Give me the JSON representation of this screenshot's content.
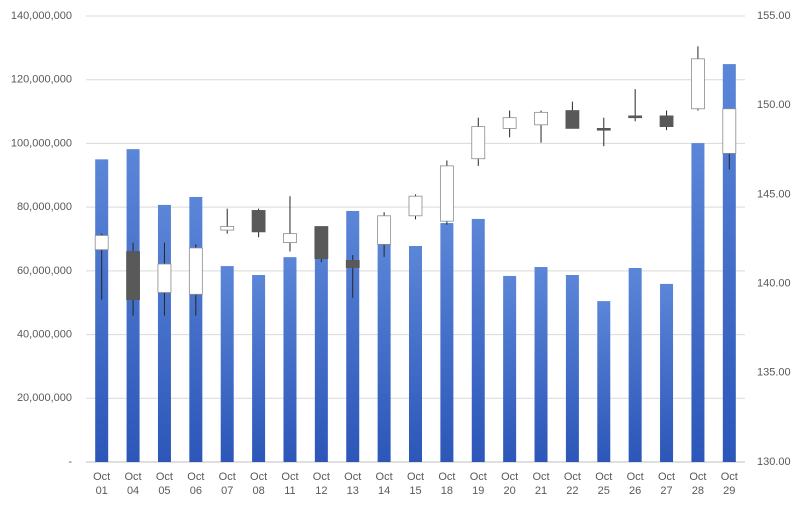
{
  "chart_data": {
    "type": "candlestick",
    "categories": [
      "Oct 01",
      "Oct 04",
      "Oct 05",
      "Oct 06",
      "Oct 07",
      "Oct 08",
      "Oct 11",
      "Oct 12",
      "Oct 13",
      "Oct 14",
      "Oct 15",
      "Oct 18",
      "Oct 19",
      "Oct 20",
      "Oct 21",
      "Oct 22",
      "Oct 25",
      "Oct 26",
      "Oct 27",
      "Oct 28",
      "Oct 29"
    ],
    "volume": {
      "color_top": "#5b86d8",
      "color_bottom": "#2c56b8",
      "values": [
        95000000,
        98200000,
        80700000,
        83200000,
        61500000,
        58700000,
        64300000,
        73800000,
        78800000,
        70000000,
        67800000,
        75000000,
        76300000,
        58400000,
        61200000,
        58700000,
        50500000,
        60900000,
        55900000,
        100100000,
        124900000
      ]
    },
    "candles": {
      "axis": "y2",
      "up_color": "#ffffff",
      "down_color": "#595959",
      "edge_color": "#8c8c8c",
      "open": [
        141.9,
        141.8,
        139.5,
        139.4,
        143.0,
        144.1,
        142.3,
        143.2,
        141.3,
        142.2,
        143.8,
        143.5,
        147.0,
        148.7,
        148.9,
        149.7,
        148.7,
        149.4,
        149.4,
        149.8,
        147.3
      ],
      "high": [
        142.8,
        142.3,
        142.3,
        142.2,
        144.2,
        144.2,
        144.9,
        143.2,
        141.6,
        144.0,
        145.0,
        146.9,
        149.3,
        149.7,
        149.7,
        150.2,
        149.3,
        150.9,
        149.7,
        153.3,
        149.8
      ],
      "low": [
        139.1,
        138.2,
        138.2,
        138.2,
        142.8,
        142.6,
        141.8,
        141.2,
        139.2,
        141.5,
        143.6,
        143.3,
        146.6,
        148.2,
        147.9,
        148.7,
        147.7,
        149.1,
        148.6,
        149.7,
        146.4
      ],
      "close": [
        142.7,
        139.1,
        141.1,
        142.0,
        143.2,
        142.9,
        142.8,
        141.4,
        140.9,
        143.8,
        144.9,
        146.6,
        148.8,
        149.3,
        149.6,
        148.7,
        148.6,
        149.3,
        148.8,
        152.6,
        149.8
      ]
    },
    "ylim": [
      0,
      140000000
    ],
    "yticks": [
      {
        "value": 0,
        "label": "-"
      },
      {
        "value": 20000000,
        "label": "20,000,000"
      },
      {
        "value": 40000000,
        "label": "40,000,000"
      },
      {
        "value": 60000000,
        "label": "60,000,000"
      },
      {
        "value": 80000000,
        "label": "80,000,000"
      },
      {
        "value": 100000000,
        "label": "100,000,000"
      },
      {
        "value": 120000000,
        "label": "120,000,000"
      },
      {
        "value": 140000000,
        "label": "140,000,000"
      }
    ],
    "y2lim": [
      130,
      155
    ],
    "y2ticks": [
      {
        "value": 130,
        "label": "130.00"
      },
      {
        "value": 135,
        "label": "135.00"
      },
      {
        "value": 140,
        "label": "140.00"
      },
      {
        "value": 145,
        "label": "145.00"
      },
      {
        "value": 150,
        "label": "150.00"
      },
      {
        "value": 155,
        "label": "155.00"
      }
    ],
    "grid": true
  }
}
